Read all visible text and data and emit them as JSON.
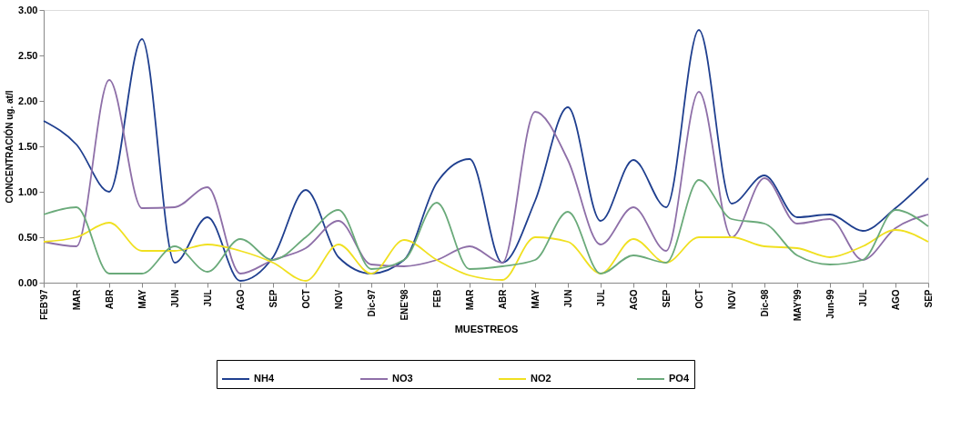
{
  "chart_data": {
    "type": "line",
    "xlabel": "MUESTREOS",
    "ylabel": "CONCENTRACIÓN ug. at/l",
    "categories": [
      "FEB'97",
      "MAR",
      "ABR",
      "MAY",
      "JUN",
      "JUL",
      "AGO",
      "SEP",
      "OCT",
      "NOV",
      "Dic-97",
      "ENE'98",
      "FEB",
      "MAR",
      "ABR",
      "MAY",
      "JUN",
      "JUL",
      "AGO",
      "SEP",
      "OCT",
      "NOV",
      "Dic-98",
      "MAY'99",
      "Jun-99",
      "JUL",
      "AGO",
      "SEP"
    ],
    "series": [
      {
        "name": "NH4",
        "color": "#1f3f8f",
        "values": [
          1.78,
          1.52,
          1.0,
          2.68,
          0.22,
          0.72,
          0.02,
          0.28,
          1.02,
          0.28,
          0.1,
          0.25,
          1.1,
          1.36,
          0.22,
          0.9,
          1.93,
          0.68,
          1.35,
          0.83,
          2.78,
          0.87,
          1.18,
          0.72,
          0.75,
          0.57,
          0.82,
          1.15
        ]
      },
      {
        "name": "NO3",
        "color": "#8e6fa8",
        "values": [
          0.45,
          0.4,
          2.23,
          0.82,
          0.83,
          1.05,
          0.1,
          0.25,
          0.38,
          0.68,
          0.2,
          0.18,
          0.25,
          0.4,
          0.22,
          1.88,
          1.35,
          0.42,
          0.83,
          0.35,
          2.1,
          0.5,
          1.15,
          0.65,
          0.7,
          0.25,
          0.6,
          0.75
        ]
      },
      {
        "name": "NO2",
        "color": "#f0e020",
        "values": [
          0.45,
          0.5,
          0.66,
          0.35,
          0.35,
          0.42,
          0.35,
          0.22,
          0.02,
          0.42,
          0.1,
          0.47,
          0.25,
          0.08,
          0.03,
          0.5,
          0.45,
          0.1,
          0.48,
          0.22,
          0.5,
          0.5,
          0.4,
          0.38,
          0.28,
          0.4,
          0.58,
          0.45
        ]
      },
      {
        "name": "PO4",
        "color": "#6aaa7a",
        "values": [
          0.75,
          0.83,
          0.1,
          0.1,
          0.4,
          0.12,
          0.48,
          0.25,
          0.5,
          0.8,
          0.15,
          0.25,
          0.88,
          0.15,
          0.18,
          0.25,
          0.78,
          0.1,
          0.3,
          0.22,
          1.13,
          0.7,
          0.65,
          0.3,
          0.2,
          0.25,
          0.8,
          0.62
        ]
      }
    ],
    "ylim": [
      0,
      3
    ],
    "yticks": [
      {
        "value": 0,
        "label": "0.00"
      },
      {
        "value": 0.5,
        "label": "0.50"
      },
      {
        "value": 1,
        "label": "1.00"
      },
      {
        "value": 1.5,
        "label": "1.50"
      },
      {
        "value": 2,
        "label": "2.00"
      },
      {
        "value": 2.5,
        "label": "2.50"
      },
      {
        "value": 3,
        "label": "3.00"
      }
    ],
    "grid": false,
    "legend": "bottom",
    "marker": "none",
    "line_style": "solid"
  }
}
